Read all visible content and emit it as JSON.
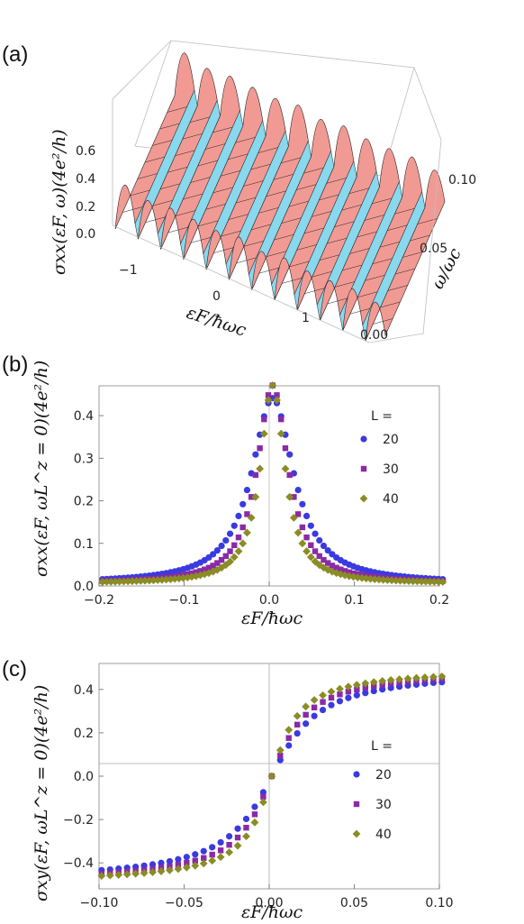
{
  "panel_labels": [
    "(a)",
    "(b)",
    "(c)"
  ],
  "colors": {
    "L20": "#3a3ae0",
    "L30": "#8a2aa6",
    "L40": "#8a8c24",
    "ridge": "#f19a94",
    "valley": "#88d8ee"
  },
  "chart_data": [
    {
      "type": "surface3d",
      "panel": "(a)",
      "zlabel": "σxx(εF, ω)(4e²/h)",
      "xlabel": "εF/ħωc",
      "ylabel": "ω/ωc",
      "x_ticks": [
        "−1",
        "0",
        "1"
      ],
      "y_ticks": [
        "0.00",
        "0.05",
        "0.10"
      ],
      "z_ticks": [
        "0.0",
        "0.2",
        "0.4",
        "0.6"
      ],
      "xlim": [
        -1.6,
        1.6
      ],
      "ylim": [
        0,
        0.11
      ],
      "zlim": [
        0,
        0.6
      ]
    },
    {
      "type": "scatter",
      "panel": "(b)",
      "xlabel": "εF/ħωc",
      "ylabel": "σxx(εF, ωL^z = 0)(4e²/h)",
      "xlim": [
        -0.2,
        0.2
      ],
      "ylim": [
        0,
        0.47
      ],
      "x_ticks": [
        "−0.2",
        "−0.1",
        "0.0",
        "0.1",
        "0.2"
      ],
      "y_ticks": [
        "0.0",
        "0.1",
        "0.2",
        "0.3",
        "0.4"
      ],
      "legend_title": "L =",
      "legend_position": "right",
      "series": [
        {
          "name": "20",
          "marker": "circle",
          "width": 0.055,
          "peak": 0.435
        },
        {
          "name": "30",
          "marker": "square",
          "width": 0.04,
          "peak": 0.465
        },
        {
          "name": "40",
          "marker": "diamond",
          "width": 0.032,
          "peak": 0.465
        }
      ]
    },
    {
      "type": "scatter",
      "panel": "(c)",
      "xlabel": "εF/ħωc",
      "ylabel": "σxy(εF, ωL^z = 0)(4e²/h)",
      "xlim": [
        -0.1,
        0.1
      ],
      "ylim": [
        -0.52,
        0.52
      ],
      "x_ticks": [
        "−0.10",
        "−0.05",
        "0.00",
        "0.05",
        "0.10"
      ],
      "y_ticks": [
        "−0.4",
        "−0.2",
        "0.0",
        "0.2",
        "0.4"
      ],
      "legend_title": "L =",
      "legend_position": "right",
      "series": [
        {
          "name": "20",
          "marker": "circle",
          "scale": 0.035
        },
        {
          "name": "30",
          "marker": "square",
          "scale": 0.027
        },
        {
          "name": "40",
          "marker": "diamond",
          "scale": 0.021
        }
      ]
    }
  ]
}
